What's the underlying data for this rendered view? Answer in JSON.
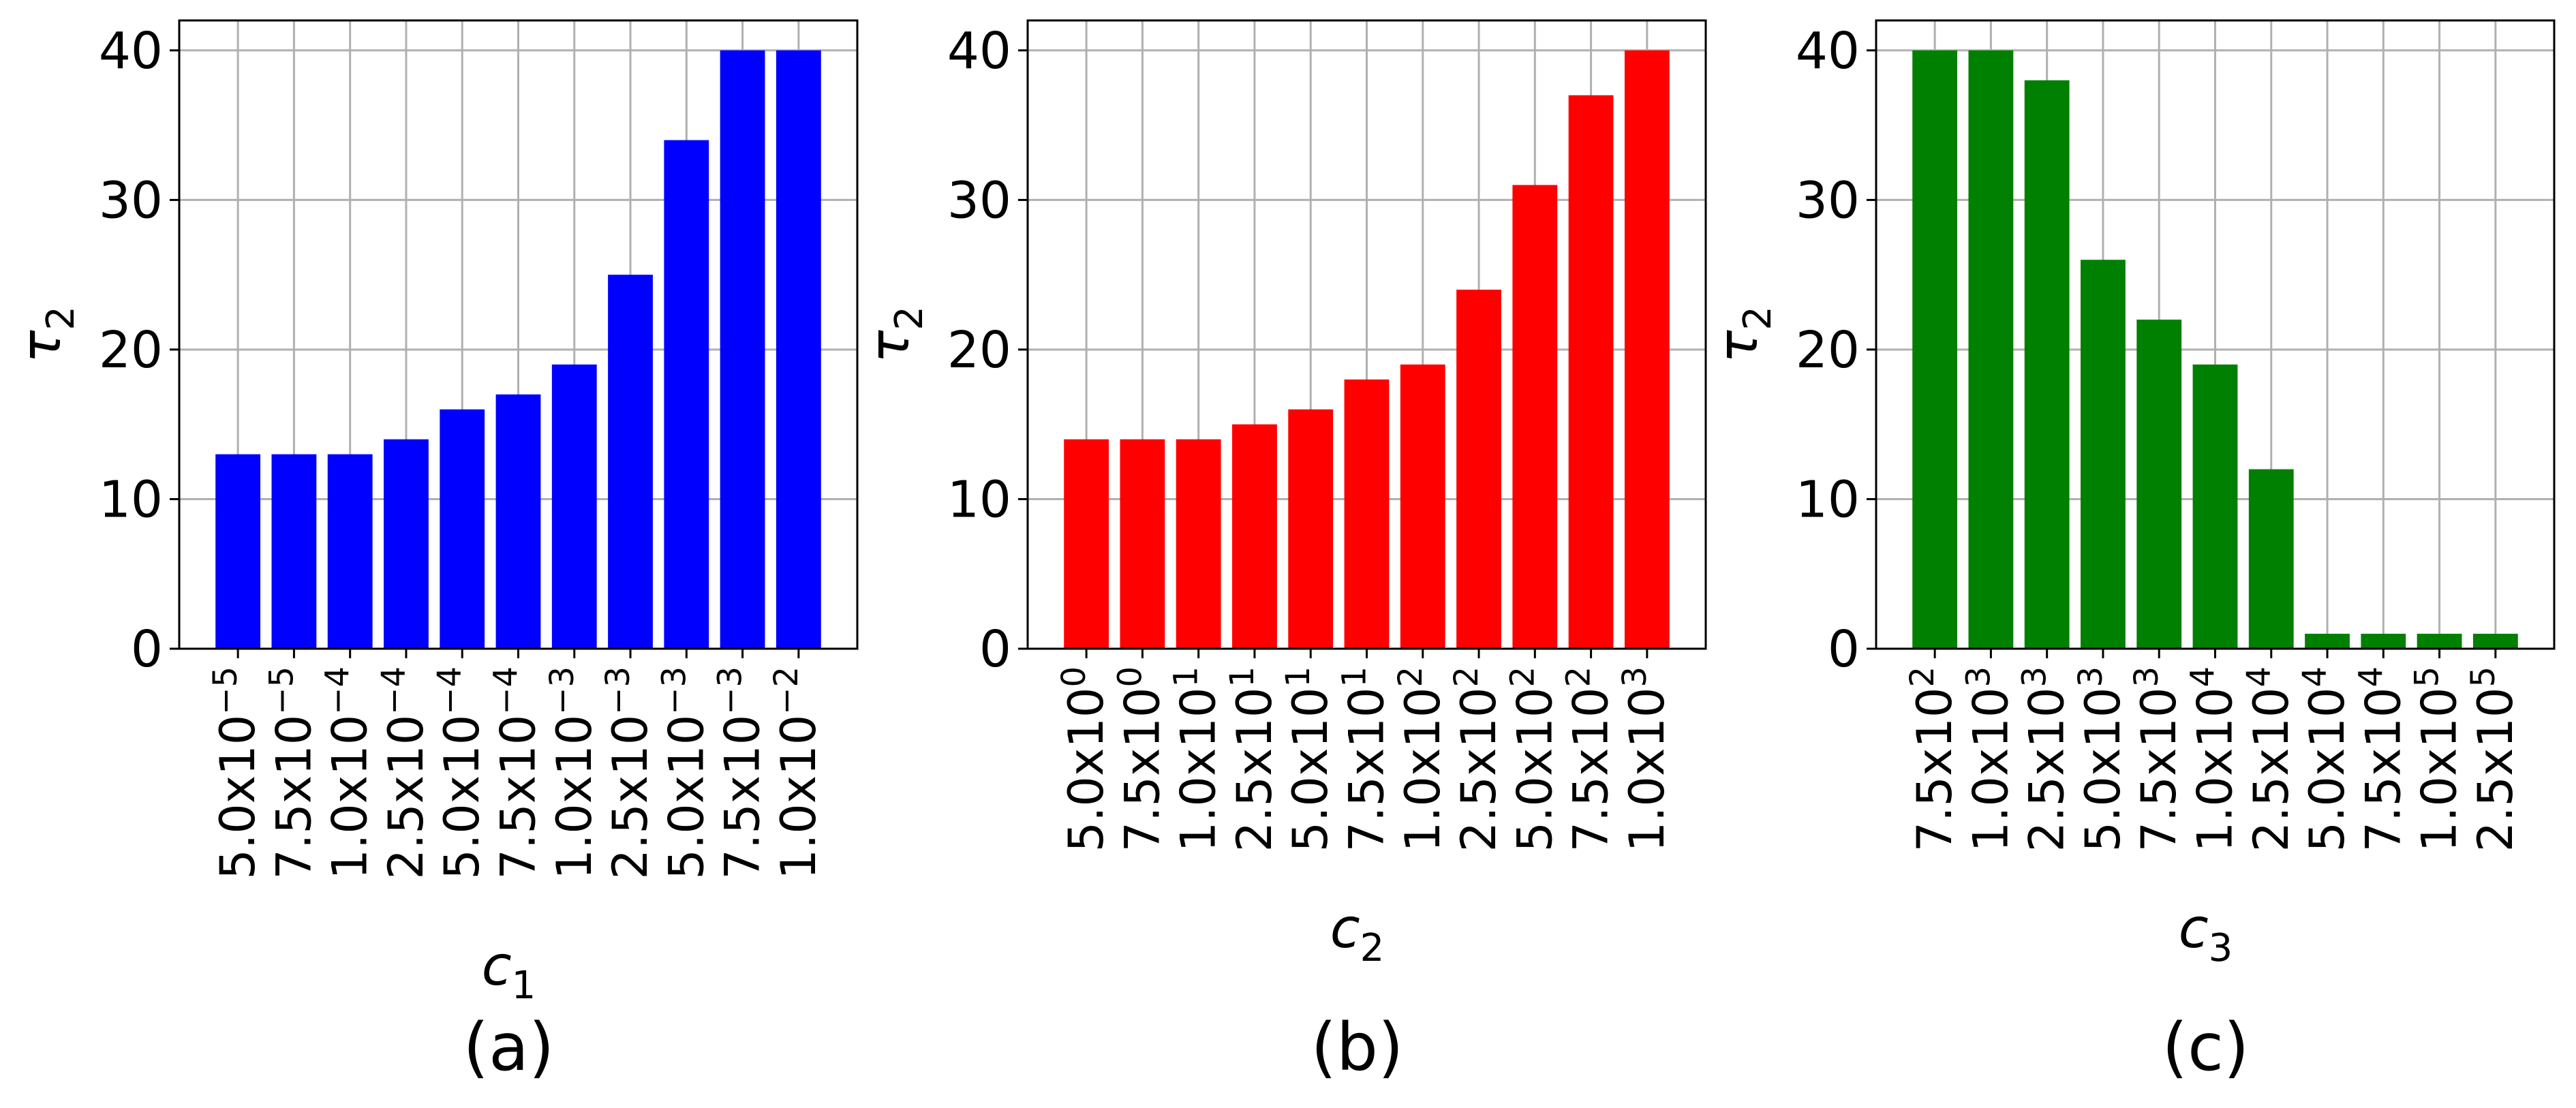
{
  "chart_data": [
    {
      "type": "bar",
      "panel_label": "(a)",
      "color": "#0000ff",
      "xlabel": "c",
      "xlabel_sub": "1",
      "ylabel": "τ",
      "ylabel_sub": "2",
      "ylim": [
        0,
        42
      ],
      "yticks": [
        0,
        10,
        20,
        30,
        40
      ],
      "grid": true,
      "categories": [
        {
          "mantissa": "5.0x10",
          "exp": "−5"
        },
        {
          "mantissa": "7.5x10",
          "exp": "−5"
        },
        {
          "mantissa": "1.0x10",
          "exp": "−4"
        },
        {
          "mantissa": "2.5x10",
          "exp": "−4"
        },
        {
          "mantissa": "5.0x10",
          "exp": "−4"
        },
        {
          "mantissa": "7.5x10",
          "exp": "−4"
        },
        {
          "mantissa": "1.0x10",
          "exp": "−3"
        },
        {
          "mantissa": "2.5x10",
          "exp": "−3"
        },
        {
          "mantissa": "5.0x10",
          "exp": "−3"
        },
        {
          "mantissa": "7.5x10",
          "exp": "−3"
        },
        {
          "mantissa": "1.0x10",
          "exp": "−2"
        }
      ],
      "values": [
        13,
        13,
        13,
        14,
        16,
        17,
        19,
        25,
        34,
        40,
        40
      ]
    },
    {
      "type": "bar",
      "panel_label": "(b)",
      "color": "#ff0000",
      "xlabel": "c",
      "xlabel_sub": "2",
      "ylabel": "τ",
      "ylabel_sub": "2",
      "ylim": [
        0,
        42
      ],
      "yticks": [
        0,
        10,
        20,
        30,
        40
      ],
      "grid": true,
      "categories": [
        {
          "mantissa": "5.0x10",
          "exp": "0"
        },
        {
          "mantissa": "7.5x10",
          "exp": "0"
        },
        {
          "mantissa": "1.0x10",
          "exp": "1"
        },
        {
          "mantissa": "2.5x10",
          "exp": "1"
        },
        {
          "mantissa": "5.0x10",
          "exp": "1"
        },
        {
          "mantissa": "7.5x10",
          "exp": "1"
        },
        {
          "mantissa": "1.0x10",
          "exp": "2"
        },
        {
          "mantissa": "2.5x10",
          "exp": "2"
        },
        {
          "mantissa": "5.0x10",
          "exp": "2"
        },
        {
          "mantissa": "7.5x10",
          "exp": "2"
        },
        {
          "mantissa": "1.0x10",
          "exp": "3"
        }
      ],
      "values": [
        14,
        14,
        14,
        15,
        16,
        18,
        19,
        24,
        31,
        37,
        40
      ]
    },
    {
      "type": "bar",
      "panel_label": "(c)",
      "color": "#008000",
      "xlabel": "c",
      "xlabel_sub": "3",
      "ylabel": "τ",
      "ylabel_sub": "2",
      "ylim": [
        0,
        42
      ],
      "yticks": [
        0,
        10,
        20,
        30,
        40
      ],
      "grid": true,
      "categories": [
        {
          "mantissa": "7.5x10",
          "exp": "2"
        },
        {
          "mantissa": "1.0x10",
          "exp": "3"
        },
        {
          "mantissa": "2.5x10",
          "exp": "3"
        },
        {
          "mantissa": "5.0x10",
          "exp": "3"
        },
        {
          "mantissa": "7.5x10",
          "exp": "3"
        },
        {
          "mantissa": "1.0x10",
          "exp": "4"
        },
        {
          "mantissa": "2.5x10",
          "exp": "4"
        },
        {
          "mantissa": "5.0x10",
          "exp": "4"
        },
        {
          "mantissa": "7.5x10",
          "exp": "4"
        },
        {
          "mantissa": "1.0x10",
          "exp": "5"
        },
        {
          "mantissa": "2.5x10",
          "exp": "5"
        }
      ],
      "values": [
        40,
        40,
        38,
        26,
        22,
        19,
        12,
        1,
        1,
        1,
        1
      ]
    }
  ]
}
